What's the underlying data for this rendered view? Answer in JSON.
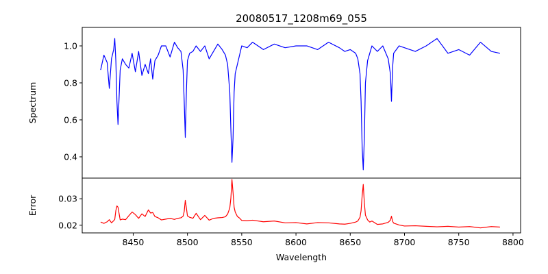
{
  "chart_data": {
    "type": "line",
    "title": "20080517_1208m69_055",
    "xlabel": "Wavelength",
    "xlim": [
      8403,
      8807
    ],
    "xticks": [
      8450,
      8500,
      8550,
      8600,
      8650,
      8700,
      8750,
      8800
    ],
    "grid": false,
    "panels": [
      {
        "ylabel": "Spectrum",
        "ylim": [
          0.285,
          1.1
        ],
        "yticks": [
          0.4,
          0.6,
          0.8,
          1.0
        ],
        "ytick_labels": [
          "0.4",
          "0.6",
          "0.8",
          "1.0"
        ],
        "series": [
          {
            "color": "#0000ff",
            "x": [
              8420,
              8423,
              8426,
              8428,
              8430,
              8432,
              8433,
              8434,
              8435,
              8436,
              8438,
              8440,
              8443,
              8446,
              8449,
              8452,
              8455,
              8458,
              8461,
              8464,
              8466,
              8468,
              8470,
              8473,
              8476,
              8480,
              8484,
              8488,
              8491,
              8494,
              8496,
              8497,
              8498,
              8499,
              8500,
              8502,
              8505,
              8508,
              8512,
              8516,
              8520,
              8524,
              8528,
              8532,
              8535,
              8537,
              8539,
              8540,
              8541,
              8542,
              8543,
              8544,
              8546,
              8548,
              8550,
              8555,
              8560,
              8570,
              8580,
              8590,
              8600,
              8610,
              8620,
              8630,
              8640,
              8645,
              8650,
              8655,
              8657,
              8659,
              8660,
              8661,
              8662,
              8663,
              8664,
              8666,
              8668,
              8670,
              8675,
              8680,
              8685,
              8687,
              8688,
              8689,
              8690,
              8695,
              8700,
              8710,
              8720,
              8730,
              8740,
              8750,
              8760,
              8770,
              8780,
              8788
            ],
            "y": [
              0.87,
              0.95,
              0.91,
              0.77,
              0.93,
              0.98,
              1.04,
              0.92,
              0.7,
              0.575,
              0.87,
              0.93,
              0.9,
              0.88,
              0.96,
              0.86,
              0.97,
              0.84,
              0.9,
              0.85,
              0.93,
              0.82,
              0.92,
              0.95,
              1.0,
              1.0,
              0.94,
              1.02,
              0.99,
              0.97,
              0.87,
              0.7,
              0.505,
              0.75,
              0.92,
              0.96,
              0.97,
              1.0,
              0.97,
              1.0,
              0.93,
              0.97,
              1.01,
              0.98,
              0.95,
              0.9,
              0.75,
              0.55,
              0.37,
              0.5,
              0.75,
              0.85,
              0.9,
              0.95,
              1.0,
              0.99,
              1.02,
              0.98,
              1.01,
              0.99,
              1.0,
              1.0,
              0.98,
              1.02,
              0.99,
              0.97,
              0.98,
              0.96,
              0.93,
              0.85,
              0.7,
              0.45,
              0.33,
              0.5,
              0.8,
              0.92,
              0.96,
              1.0,
              0.97,
              1.0,
              0.93,
              0.85,
              0.7,
              0.88,
              0.96,
              1.0,
              0.99,
              0.97,
              1.0,
              1.04,
              0.96,
              0.98,
              0.95,
              1.02,
              0.97,
              0.96
            ]
          }
        ]
      },
      {
        "ylabel": "Error",
        "ylim": [
          0.0171,
          0.0378
        ],
        "yticks": [
          0.02,
          0.03
        ],
        "ytick_labels": [
          "0.02",
          "0.03"
        ],
        "series": [
          {
            "color": "#ff0000",
            "x": [
              8420,
              8423,
              8426,
              8428,
              8430,
              8432,
              8433,
              8434,
              8435,
              8436,
              8438,
              8440,
              8443,
              8446,
              8449,
              8452,
              8455,
              8458,
              8461,
              8464,
              8466,
              8468,
              8470,
              8473,
              8476,
              8480,
              8484,
              8488,
              8491,
              8494,
              8496,
              8497,
              8498,
              8499,
              8500,
              8502,
              8505,
              8508,
              8512,
              8516,
              8520,
              8524,
              8528,
              8532,
              8535,
              8537,
              8539,
              8540,
              8541,
              8542,
              8543,
              8544,
              8546,
              8548,
              8550,
              8555,
              8560,
              8570,
              8580,
              8590,
              8600,
              8610,
              8620,
              8630,
              8640,
              8645,
              8650,
              8655,
              8657,
              8659,
              8660,
              8661,
              8662,
              8663,
              8664,
              8666,
              8668,
              8670,
              8675,
              8680,
              8685,
              8687,
              8688,
              8689,
              8690,
              8695,
              8700,
              8710,
              8720,
              8730,
              8740,
              8750,
              8760,
              8770,
              8780,
              8788
            ],
            "y": [
              0.0212,
              0.0207,
              0.0213,
              0.0221,
              0.0209,
              0.0217,
              0.0222,
              0.0255,
              0.0273,
              0.0268,
              0.022,
              0.0223,
              0.0221,
              0.0236,
              0.025,
              0.024,
              0.0226,
              0.0243,
              0.0233,
              0.0258,
              0.0246,
              0.0248,
              0.0233,
              0.0228,
              0.022,
              0.0223,
              0.0226,
              0.0222,
              0.0226,
              0.0228,
              0.0234,
              0.0252,
              0.0294,
              0.0266,
              0.0235,
              0.023,
              0.0226,
              0.0245,
              0.0221,
              0.0237,
              0.0219,
              0.0226,
              0.0228,
              0.0229,
              0.0232,
              0.0242,
              0.0265,
              0.0302,
              0.0373,
              0.0324,
              0.0268,
              0.025,
              0.0233,
              0.0227,
              0.0218,
              0.0217,
              0.0219,
              0.0213,
              0.0216,
              0.0209,
              0.021,
              0.0205,
              0.021,
              0.0209,
              0.0205,
              0.0204,
              0.0207,
              0.0212,
              0.0216,
              0.023,
              0.0255,
              0.0312,
              0.0354,
              0.0285,
              0.0238,
              0.022,
              0.0212,
              0.0216,
              0.0203,
              0.0205,
              0.0211,
              0.0219,
              0.0234,
              0.0215,
              0.0208,
              0.0201,
              0.0197,
              0.0198,
              0.0196,
              0.0194,
              0.0196,
              0.0193,
              0.0195,
              0.019,
              0.0195,
              0.0193
            ]
          }
        ]
      }
    ]
  }
}
